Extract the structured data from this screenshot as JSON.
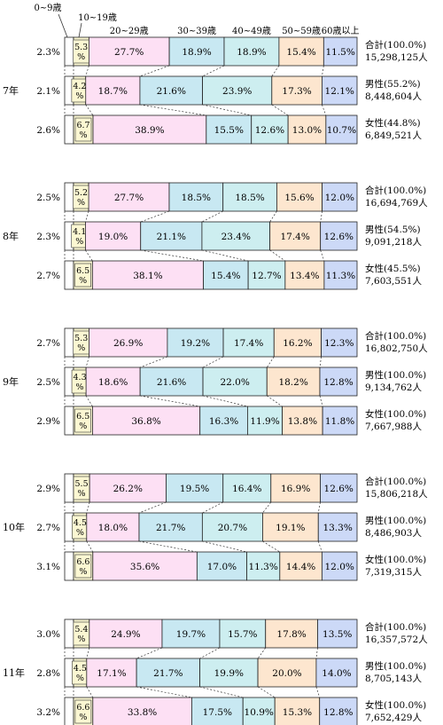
{
  "chart_data": {
    "type": "bar",
    "stacked": "horizontal-100%",
    "categories": [
      "0~9歳",
      "10~19歳",
      "20~29歳",
      "30~39歳",
      "40~49歳",
      "50~59歳",
      "60歳以上"
    ],
    "colors": [
      "#ffffff",
      "#fbf7d2",
      "#fde0f4",
      "#c8e8f2",
      "#cdeef0",
      "#fde6cf",
      "#ccd9f7"
    ],
    "groups": [
      {
        "year": "7年",
        "rows": [
          {
            "values": [
              2.3,
              5.3,
              27.7,
              18.9,
              18.9,
              15.4,
              11.5
            ],
            "labels": [
              "2.3%",
              "5.3%",
              "27.7%",
              "18.9%",
              "18.9%",
              "15.4%",
              "11.5%"
            ],
            "title": "合計(100.0%)",
            "count": "15,298,125人"
          },
          {
            "values": [
              2.1,
              4.2,
              18.7,
              21.6,
              23.9,
              17.3,
              12.1
            ],
            "labels": [
              "2.1%",
              "4.2%",
              "18.7%",
              "21.6%",
              "23.9%",
              "17.3%",
              "12.1%"
            ],
            "title": "男性(55.2%)",
            "count": "8,448,604人"
          },
          {
            "values": [
              2.6,
              6.7,
              38.9,
              15.5,
              12.6,
              13.0,
              10.7
            ],
            "labels": [
              "2.6%",
              "6.7%",
              "38.9%",
              "15.5%",
              "12.6%",
              "13.0%",
              "10.7%"
            ],
            "title": "女性(44.8%)",
            "count": "6,849,521人"
          }
        ]
      },
      {
        "year": "8年",
        "rows": [
          {
            "values": [
              2.5,
              5.2,
              27.7,
              18.5,
              18.5,
              15.6,
              12.0
            ],
            "labels": [
              "2.5%",
              "5.2%",
              "27.7%",
              "18.5%",
              "18.5%",
              "15.6%",
              "12.0%"
            ],
            "title": "合計(100.0%)",
            "count": "16,694,769人"
          },
          {
            "values": [
              2.3,
              4.1,
              19.0,
              21.1,
              23.4,
              17.4,
              12.6
            ],
            "labels": [
              "2.3%",
              "4.1%",
              "19.0%",
              "21.1%",
              "23.4%",
              "17.4%",
              "12.6%"
            ],
            "title": "男性(54.5%)",
            "count": "9,091,218人"
          },
          {
            "values": [
              2.7,
              6.5,
              38.1,
              15.4,
              12.7,
              13.4,
              11.3
            ],
            "labels": [
              "2.7%",
              "6.5%",
              "38.1%",
              "15.4%",
              "12.7%",
              "13.4%",
              "11.3%"
            ],
            "title": "女性(45.5%)",
            "count": "7,603,551人"
          }
        ]
      },
      {
        "year": "9年",
        "rows": [
          {
            "values": [
              2.7,
              5.3,
              26.9,
              19.2,
              17.4,
              16.2,
              12.3
            ],
            "labels": [
              "2.7%",
              "5.3%",
              "26.9%",
              "19.2%",
              "17.4%",
              "16.2%",
              "12.3%"
            ],
            "title": "合計(100.0%)",
            "count": "16,802,750人"
          },
          {
            "values": [
              2.5,
              4.3,
              18.6,
              21.6,
              22.0,
              18.2,
              12.8
            ],
            "labels": [
              "2.5%",
              "4.3%",
              "18.6%",
              "21.6%",
              "22.0%",
              "18.2%",
              "12.8%"
            ],
            "title": "男性(100.0%)",
            "count": "9,134,762人"
          },
          {
            "values": [
              2.9,
              6.5,
              36.8,
              16.3,
              11.9,
              13.8,
              11.8
            ],
            "labels": [
              "2.9%",
              "6.5%",
              "36.8%",
              "16.3%",
              "11.9%",
              "13.8%",
              "11.8%"
            ],
            "title": "女性(100.0%)",
            "count": "7,667,988人"
          }
        ]
      },
      {
        "year": "10年",
        "rows": [
          {
            "values": [
              2.9,
              5.5,
              26.2,
              19.5,
              16.4,
              16.9,
              12.6
            ],
            "labels": [
              "2.9%",
              "5.5%",
              "26.2%",
              "19.5%",
              "16.4%",
              "16.9%",
              "12.6%"
            ],
            "title": "合計(100.0%)",
            "count": "15,806,218人"
          },
          {
            "values": [
              2.7,
              4.5,
              18.0,
              21.7,
              20.7,
              19.1,
              13.3
            ],
            "labels": [
              "2.7%",
              "4.5%",
              "18.0%",
              "21.7%",
              "20.7%",
              "19.1%",
              "13.3%"
            ],
            "title": "男性(100.0%)",
            "count": "8,486,903人"
          },
          {
            "values": [
              3.1,
              6.6,
              35.6,
              17.0,
              11.3,
              14.4,
              12.0
            ],
            "labels": [
              "3.1%",
              "6.6%",
              "35.6%",
              "17.0%",
              "11.3%",
              "14.4%",
              "12.0%"
            ],
            "title": "女性(100.0%)",
            "count": "7,319,315人"
          }
        ]
      },
      {
        "year": "11年",
        "rows": [
          {
            "values": [
              3.0,
              5.4,
              24.9,
              19.7,
              15.7,
              17.8,
              13.5
            ],
            "labels": [
              "3.0%",
              "5.4%",
              "24.9%",
              "19.7%",
              "15.7%",
              "17.8%",
              "13.5%"
            ],
            "title": "合計(100.0%)",
            "count": "16,357,572人"
          },
          {
            "values": [
              2.8,
              4.5,
              17.1,
              21.7,
              19.9,
              20.0,
              14.0
            ],
            "labels": [
              "2.8%",
              "4.5%",
              "17.1%",
              "21.7%",
              "19.9%",
              "20.0%",
              "14.0%"
            ],
            "title": "男性(100.0%)",
            "count": "8,705,143人"
          },
          {
            "values": [
              3.2,
              6.6,
              33.8,
              17.5,
              10.9,
              15.3,
              12.8
            ],
            "labels": [
              "3.2%",
              "6.6%",
              "33.8%",
              "17.5%",
              "10.9%",
              "15.3%",
              "12.8%"
            ],
            "title": "女性(100.0%)",
            "count": "7,652,429人"
          }
        ]
      }
    ]
  }
}
